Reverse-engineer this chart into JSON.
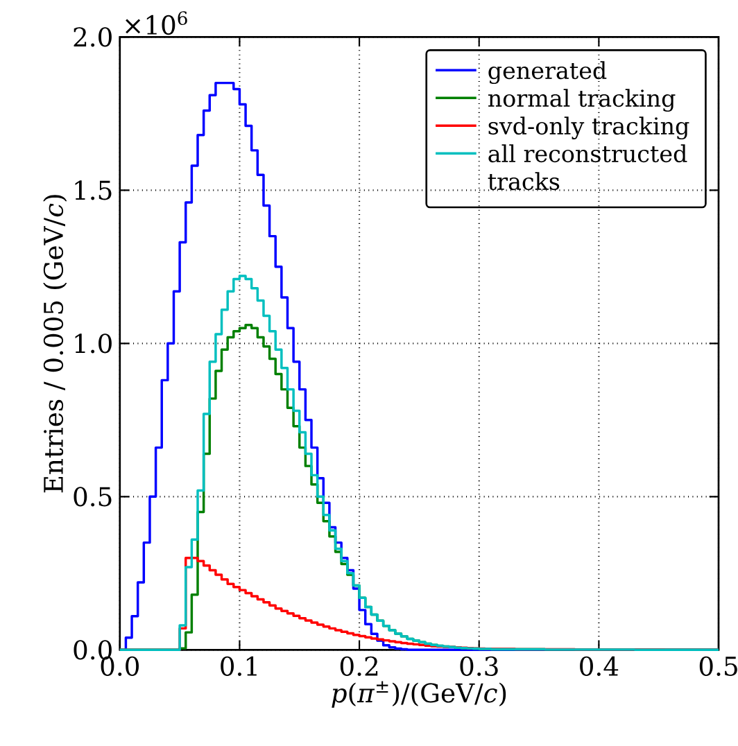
{
  "chart_data": {
    "type": "histogram",
    "xlabel": "*p*(*π*$^{±}$)/(GeV/*c*)",
    "ylabel": "Entries / 0.005 (GeV/*c*)",
    "annotations": [
      "×10$^{6}$"
    ],
    "bins": [
      0,
      0.005,
      0.01,
      0.015,
      0.02,
      0.025,
      0.03,
      0.035,
      0.04,
      0.045,
      0.05,
      0.055,
      0.06,
      0.065,
      0.07,
      0.075,
      0.08,
      0.085,
      0.09,
      0.095,
      0.1,
      0.105,
      0.11,
      0.115,
      0.12,
      0.125,
      0.13,
      0.135,
      0.14,
      0.145,
      0.15,
      0.155,
      0.16,
      0.165,
      0.17,
      0.175,
      0.18,
      0.185,
      0.19,
      0.195,
      0.2,
      0.205,
      0.21,
      0.215,
      0.22,
      0.225,
      0.23,
      0.235,
      0.24,
      0.245,
      0.25,
      0.255,
      0.26,
      0.265,
      0.27,
      0.275,
      0.28,
      0.285,
      0.29,
      0.295,
      0.3,
      0.305,
      0.31,
      0.315,
      0.32,
      0.325,
      0.33,
      0.335,
      0.34,
      0.345,
      0.35,
      0.355,
      0.36,
      0.365,
      0.37,
      0.375,
      0.38,
      0.385,
      0.39,
      0.395,
      0.4,
      0.405,
      0.41,
      0.415,
      0.42,
      0.425,
      0.43,
      0.435,
      0.44,
      0.445,
      0.45,
      0.455,
      0.46,
      0.465,
      0.47,
      0.475,
      0.48,
      0.485,
      0.49,
      0.495,
      0.5
    ],
    "series": [
      {
        "name": "generated",
        "color": "#0000ff",
        "values": [
          0,
          0.04,
          0.11,
          0.22,
          0.35,
          0.5,
          0.66,
          0.88,
          1.0,
          1.17,
          1.33,
          1.46,
          1.58,
          1.68,
          1.76,
          1.81,
          1.85,
          1.85,
          1.85,
          1.83,
          1.78,
          1.71,
          1.63,
          1.55,
          1.45,
          1.35,
          1.25,
          1.15,
          1.05,
          0.94,
          0.85,
          0.75,
          0.66,
          0.56,
          0.48,
          0.4,
          0.35,
          0.3,
          0.26,
          0.2,
          0.13,
          0.084,
          0.052,
          0.03,
          0.015,
          0.008,
          0.004,
          0.002,
          0,
          0,
          0,
          0,
          0,
          0,
          0,
          0,
          0,
          0,
          0,
          0,
          0,
          0,
          0,
          0,
          0,
          0,
          0,
          0,
          0,
          0,
          0,
          0,
          0,
          0,
          0,
          0,
          0,
          0,
          0,
          0,
          0,
          0,
          0,
          0,
          0,
          0,
          0,
          0,
          0,
          0,
          0,
          0,
          0,
          0,
          0,
          0,
          0,
          0,
          0,
          0
        ]
      },
      {
        "name": "normal tracking",
        "color": "#008000",
        "values": [
          0,
          0,
          0,
          0,
          0,
          0,
          0,
          0,
          0,
          0,
          0.005,
          0.057,
          0.18,
          0.45,
          0.64,
          0.82,
          0.91,
          0.98,
          1.02,
          1.04,
          1.05,
          1.06,
          1.05,
          1.02,
          0.99,
          0.95,
          0.9,
          0.85,
          0.79,
          0.73,
          0.66,
          0.6,
          0.54,
          0.48,
          0.42,
          0.37,
          0.32,
          0.28,
          0.245,
          0.21,
          0.17,
          0.14,
          0.115,
          0.095,
          0.078,
          0.064,
          0.053,
          0.044,
          0.036,
          0.03,
          0.025,
          0.02,
          0.016,
          0.013,
          0.011,
          0.009,
          0.007,
          0.006,
          0.005,
          0.004,
          0.003,
          0.003,
          0.002,
          0.002,
          0.002,
          0.002,
          0.002,
          0.002,
          0.002,
          0.002,
          0.002,
          0.001,
          0.001,
          0.001,
          0.001,
          0.001,
          0.001,
          0.001,
          0.001,
          0.001,
          0.001,
          0.001,
          0.001,
          0.001,
          0.001,
          0.001,
          0,
          0,
          0,
          0,
          0,
          0,
          0,
          0,
          0,
          0,
          0,
          0,
          0,
          0
        ]
      },
      {
        "name": "svd-only tracking",
        "color": "#ff0000",
        "values": [
          0,
          0,
          0,
          0,
          0,
          0,
          0,
          0,
          0,
          0,
          0.07,
          0.3,
          0.3,
          0.29,
          0.275,
          0.26,
          0.245,
          0.23,
          0.215,
          0.205,
          0.195,
          0.185,
          0.175,
          0.165,
          0.155,
          0.145,
          0.135,
          0.127,
          0.119,
          0.111,
          0.103,
          0.096,
          0.089,
          0.082,
          0.076,
          0.07,
          0.064,
          0.059,
          0.054,
          0.049,
          0.045,
          0.041,
          0.037,
          0.034,
          0.031,
          0.028,
          0.025,
          0.022,
          0.02,
          0.018,
          0.016,
          0.014,
          0.012,
          0.011,
          0.01,
          0.009,
          0.008,
          0.007,
          0.006,
          0.005,
          0.004,
          0.003,
          0.003,
          0.003,
          0.003,
          0.003,
          0.002,
          0.002,
          0.002,
          0.002,
          0.002,
          0.002,
          0.002,
          0.002,
          0.002,
          0.002,
          0.001,
          0.001,
          0.001,
          0.001,
          0.001,
          0.001,
          0.001,
          0.001,
          0.001,
          0.001,
          0.001,
          0.001,
          0.001,
          0.001,
          0.001,
          0,
          0,
          0,
          0,
          0,
          0,
          0,
          0,
          0
        ]
      },
      {
        "name": "all reconstructed tracks",
        "color": "#00bfbf",
        "values": [
          0,
          0,
          0,
          0,
          0,
          0,
          0,
          0,
          0,
          0,
          0.08,
          0.27,
          0.36,
          0.52,
          0.77,
          0.94,
          1.03,
          1.11,
          1.17,
          1.21,
          1.22,
          1.21,
          1.18,
          1.14,
          1.09,
          1.04,
          0.98,
          0.92,
          0.85,
          0.78,
          0.71,
          0.64,
          0.57,
          0.5,
          0.44,
          0.39,
          0.33,
          0.29,
          0.25,
          0.21,
          0.17,
          0.14,
          0.115,
          0.095,
          0.078,
          0.064,
          0.053,
          0.044,
          0.036,
          0.03,
          0.025,
          0.02,
          0.016,
          0.013,
          0.011,
          0.009,
          0.007,
          0.006,
          0.005,
          0.004,
          0.003,
          0.003,
          0.002,
          0.002,
          0.002,
          0.002,
          0.002,
          0.002,
          0.002,
          0.002,
          0.002,
          0.001,
          0.001,
          0.001,
          0.001,
          0.001,
          0.001,
          0.001,
          0.001,
          0.001,
          0.001,
          0.001,
          0.001,
          0.001,
          0.001,
          0.001,
          0,
          0,
          0,
          0,
          0,
          0,
          0,
          0,
          0,
          0,
          0,
          0,
          0,
          0
        ]
      }
    ],
    "xlim": [
      0,
      0.5
    ],
    "ylim": [
      0,
      2.0
    ],
    "xticks": [
      {
        "value": 0,
        "label": "0.0"
      },
      {
        "value": 0.1,
        "label": "0.1"
      },
      {
        "value": 0.2,
        "label": "0.2"
      },
      {
        "value": 0.3,
        "label": "0.3"
      },
      {
        "value": 0.4,
        "label": "0.4"
      },
      {
        "value": 0.5,
        "label": "0.5"
      }
    ],
    "yticks": [
      {
        "value": 0,
        "label": "0.0"
      },
      {
        "value": 0.5,
        "label": "0.5"
      },
      {
        "value": 1.0,
        "label": "1.0"
      },
      {
        "value": 1.5,
        "label": "1.5"
      },
      {
        "value": 2.0,
        "label": "2.0"
      }
    ],
    "grid": true,
    "legend": "top right"
  }
}
